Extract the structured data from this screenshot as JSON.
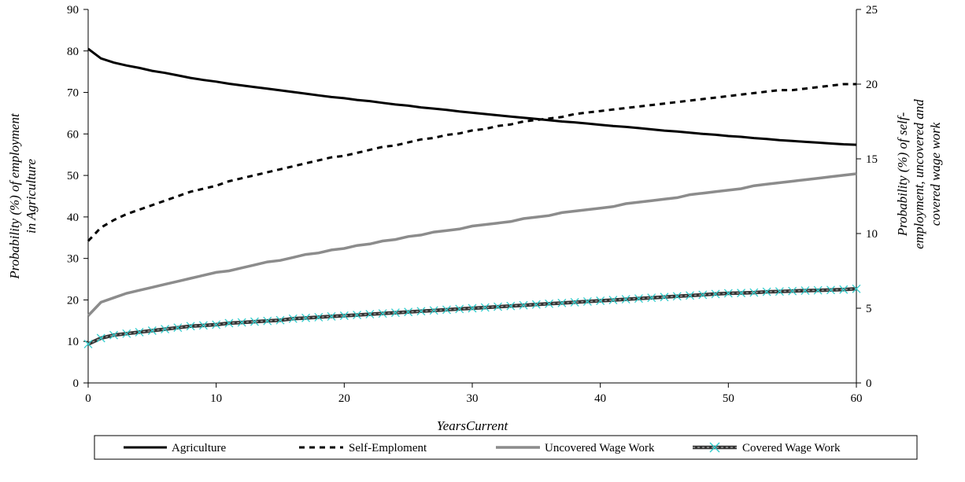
{
  "chart_data": {
    "type": "line",
    "xlabel": "YearsCurrent",
    "ylabel_left": [
      "Probability (%) of employment",
      "in Agriculture"
    ],
    "ylabel_right": [
      "Probability (%) of self-",
      "employment, uncovered and",
      "covered wage work"
    ],
    "x_range": [
      0,
      60
    ],
    "x_ticks": [
      0,
      10,
      20,
      30,
      40,
      50,
      60
    ],
    "y_left_range": [
      0,
      90
    ],
    "y_left_ticks": [
      0,
      10,
      20,
      30,
      40,
      50,
      60,
      70,
      80,
      90
    ],
    "y_right_range": [
      0,
      25
    ],
    "y_right_ticks": [
      0,
      5,
      10,
      15,
      20,
      25
    ],
    "grid": false,
    "legend_position": "bottom",
    "x": [
      0,
      1,
      2,
      3,
      4,
      5,
      6,
      7,
      8,
      9,
      10,
      11,
      12,
      13,
      14,
      15,
      16,
      17,
      18,
      19,
      20,
      21,
      22,
      23,
      24,
      25,
      26,
      27,
      28,
      29,
      30,
      31,
      32,
      33,
      34,
      35,
      36,
      37,
      38,
      39,
      40,
      41,
      42,
      43,
      44,
      45,
      46,
      47,
      48,
      49,
      50,
      51,
      52,
      53,
      54,
      55,
      56,
      57,
      58,
      59,
      60
    ],
    "series": [
      {
        "name": "Agriculture",
        "axis": "left",
        "style": "solid-black",
        "values": [
          80.5,
          78.2,
          77.2,
          76.5,
          75.9,
          75.2,
          74.7,
          74.1,
          73.5,
          73.0,
          72.6,
          72.1,
          71.7,
          71.3,
          70.9,
          70.5,
          70.1,
          69.7,
          69.3,
          68.9,
          68.6,
          68.2,
          67.9,
          67.5,
          67.1,
          66.8,
          66.4,
          66.1,
          65.8,
          65.4,
          65.1,
          64.8,
          64.5,
          64.2,
          63.9,
          63.6,
          63.3,
          63.0,
          62.8,
          62.5,
          62.2,
          61.9,
          61.7,
          61.4,
          61.1,
          60.8,
          60.6,
          60.3,
          60.0,
          59.8,
          59.5,
          59.3,
          59.0,
          58.8,
          58.5,
          58.3,
          58.1,
          57.9,
          57.7,
          57.5,
          57.4
        ]
      },
      {
        "name": "Self-Emploment",
        "axis": "right",
        "style": "dashed-black",
        "values": [
          9.5,
          10.4,
          10.9,
          11.3,
          11.6,
          11.9,
          12.2,
          12.5,
          12.8,
          13.0,
          13.2,
          13.5,
          13.7,
          13.9,
          14.1,
          14.3,
          14.5,
          14.7,
          14.9,
          15.1,
          15.2,
          15.4,
          15.6,
          15.8,
          15.9,
          16.1,
          16.3,
          16.4,
          16.6,
          16.7,
          16.9,
          17.0,
          17.2,
          17.3,
          17.5,
          17.6,
          17.7,
          17.8,
          18.0,
          18.1,
          18.2,
          18.3,
          18.4,
          18.5,
          18.6,
          18.7,
          18.8,
          18.9,
          19.0,
          19.1,
          19.2,
          19.3,
          19.4,
          19.5,
          19.6,
          19.6,
          19.7,
          19.8,
          19.9,
          20.0,
          20.0
        ]
      },
      {
        "name": "Uncovered Wage Work",
        "axis": "right",
        "style": "solid-gray",
        "values": [
          4.5,
          5.4,
          5.7,
          6.0,
          6.2,
          6.4,
          6.6,
          6.8,
          7.0,
          7.2,
          7.4,
          7.5,
          7.7,
          7.9,
          8.1,
          8.2,
          8.4,
          8.6,
          8.7,
          8.9,
          9.0,
          9.2,
          9.3,
          9.5,
          9.6,
          9.8,
          9.9,
          10.1,
          10.2,
          10.3,
          10.5,
          10.6,
          10.7,
          10.8,
          11.0,
          11.1,
          11.2,
          11.4,
          11.5,
          11.6,
          11.7,
          11.8,
          12.0,
          12.1,
          12.2,
          12.3,
          12.4,
          12.6,
          12.7,
          12.8,
          12.9,
          13.0,
          13.2,
          13.3,
          13.4,
          13.5,
          13.6,
          13.7,
          13.8,
          13.9,
          14.0
        ]
      },
      {
        "name": "Covered Wage Work",
        "axis": "right",
        "style": "striped-with-cyan-x",
        "values": [
          2.6,
          3.0,
          3.2,
          3.3,
          3.4,
          3.5,
          3.6,
          3.7,
          3.8,
          3.85,
          3.9,
          4.0,
          4.05,
          4.1,
          4.15,
          4.2,
          4.3,
          4.35,
          4.4,
          4.45,
          4.5,
          4.55,
          4.6,
          4.65,
          4.7,
          4.75,
          4.8,
          4.85,
          4.9,
          4.95,
          5.0,
          5.05,
          5.1,
          5.15,
          5.2,
          5.25,
          5.3,
          5.35,
          5.4,
          5.45,
          5.5,
          5.55,
          5.6,
          5.65,
          5.7,
          5.75,
          5.8,
          5.85,
          5.9,
          5.95,
          6.0,
          6.02,
          6.05,
          6.1,
          6.12,
          6.15,
          6.18,
          6.2,
          6.22,
          6.25,
          6.3
        ]
      }
    ]
  },
  "colors": {
    "agriculture": "#000000",
    "self_employment": "#000000",
    "uncovered": "#8c8c8c",
    "covered_line": "#333333",
    "covered_marker": "#33cccc"
  }
}
